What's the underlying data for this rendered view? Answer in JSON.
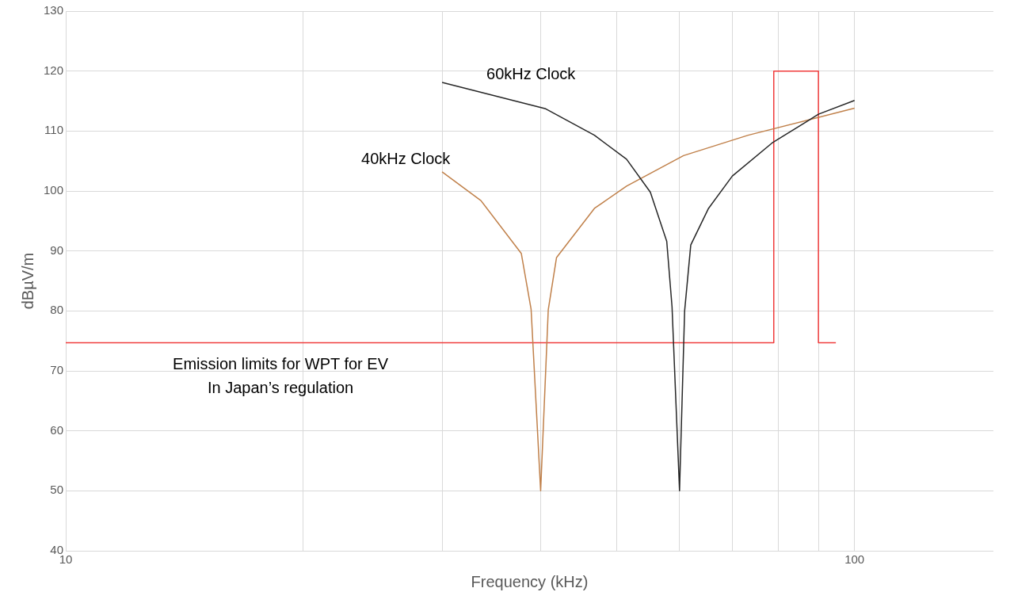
{
  "chart_data": {
    "type": "line",
    "xlabel": "Frequency (kHz)",
    "ylabel": "dBµV/m",
    "log": "x",
    "grid": true,
    "legend": false,
    "marker": "none",
    "line_style": "solid",
    "xlim": [
      10,
      150
    ],
    "xticks": [
      10,
      {
        "value": 20,
        "label": null
      },
      {
        "value": 30,
        "label": null
      },
      {
        "value": 40,
        "label": null
      },
      {
        "value": 50,
        "label": null
      },
      {
        "value": 60,
        "label": null
      },
      {
        "value": 70,
        "label": null
      },
      {
        "value": 80,
        "label": null
      },
      {
        "value": 90,
        "label": null
      },
      100
    ],
    "ylim": [
      40,
      130
    ],
    "yticks": [
      40,
      50,
      60,
      70,
      80,
      90,
      100,
      110,
      120,
      130
    ],
    "series": [
      {
        "name": "60kHz Clock",
        "color": "#262626",
        "x": [
          30,
          40.6,
          46.8,
          51.4,
          55.1,
          57.8,
          58.7,
          60,
          60.9,
          62,
          65.3,
          70,
          78.6,
          90,
          100
        ],
        "values": [
          118.1,
          113.7,
          109.3,
          105.3,
          99.8,
          91.6,
          80.7,
          50,
          80,
          91,
          97.1,
          102.5,
          108,
          112.8,
          115.1
        ]
      },
      {
        "name": "40kHz Clock",
        "color": "#c0804a",
        "x": [
          30,
          33.6,
          37.8,
          38.9,
          40,
          40.9,
          41.9,
          46.8,
          51.4,
          60.7,
          73.3,
          100
        ],
        "values": [
          103.2,
          98.4,
          89.6,
          80.3,
          50,
          80.2,
          88.9,
          97.1,
          100.8,
          105.9,
          109.3,
          113.8
        ]
      },
      {
        "name": "Emission limits for WPT for EV\nIn Japan’s regulation",
        "color": "#f03c3c",
        "x": [
          10,
          79,
          79,
          90,
          90,
          94.7
        ],
        "values": [
          74.7,
          74.7,
          120,
          120,
          74.7,
          74.7
        ]
      }
    ]
  }
}
